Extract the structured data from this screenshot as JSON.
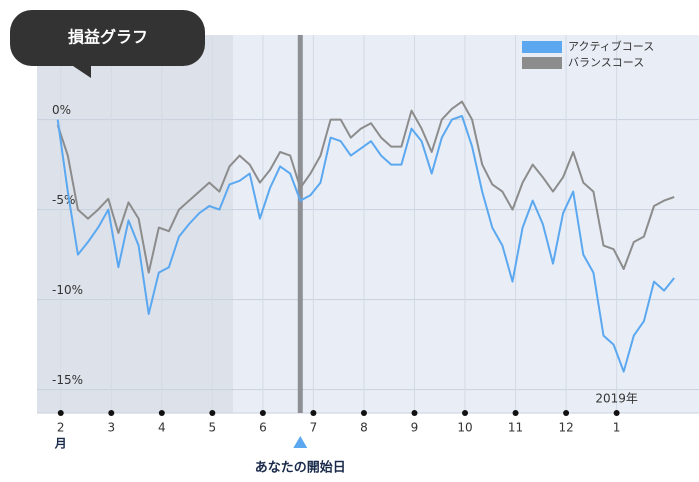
{
  "chart_data": {
    "type": "line",
    "title": "損益グラフ",
    "x_unit_label": "月",
    "year_label": "2019年",
    "start_marker": {
      "label": "あなたの開始日",
      "x": 4.74
    },
    "history_band": {
      "xlim": [
        -0.47,
        3.41
      ]
    },
    "xlim": [
      -0.47,
      12.63
    ],
    "ylim": [
      -16.3,
      4.7
    ],
    "xticks": [
      {
        "value": 0,
        "label": "2"
      },
      {
        "value": 1,
        "label": "3"
      },
      {
        "value": 2,
        "label": "4"
      },
      {
        "value": 3,
        "label": "5"
      },
      {
        "value": 4,
        "label": "6"
      },
      {
        "value": 5,
        "label": "7"
      },
      {
        "value": 6,
        "label": "8"
      },
      {
        "value": 7,
        "label": "9"
      },
      {
        "value": 8,
        "label": "10"
      },
      {
        "value": 9,
        "label": "11"
      },
      {
        "value": 10,
        "label": "12"
      },
      {
        "value": 11,
        "label": "1"
      }
    ],
    "yticks": [
      {
        "value": 0,
        "label": "0%"
      },
      {
        "value": -5,
        "label": "-5%"
      },
      {
        "value": -10,
        "label": "-10%"
      },
      {
        "value": -15,
        "label": "-15%"
      }
    ],
    "grid": true,
    "legend": "upper right",
    "x": [
      -0.06,
      0.14,
      0.34,
      0.54,
      0.74,
      0.94,
      1.14,
      1.34,
      1.54,
      1.74,
      1.94,
      2.14,
      2.34,
      2.54,
      2.74,
      2.94,
      3.14,
      3.34,
      3.54,
      3.74,
      3.94,
      4.14,
      4.34,
      4.54,
      4.74,
      4.94,
      5.14,
      5.34,
      5.54,
      5.74,
      5.94,
      6.14,
      6.34,
      6.54,
      6.74,
      6.94,
      7.14,
      7.34,
      7.54,
      7.74,
      7.94,
      8.14,
      8.34,
      8.54,
      8.74,
      8.94,
      9.14,
      9.34,
      9.54,
      9.74,
      9.94,
      10.14,
      10.34,
      10.54,
      10.74,
      10.94,
      11.14,
      11.34,
      11.54,
      11.74,
      11.94,
      12.14
    ],
    "series": [
      {
        "name": "アクティブコース",
        "color": "#5ba8f0",
        "values": [
          0,
          -4,
          -7.5,
          -6.8,
          -6,
          -5,
          -8.2,
          -5.6,
          -7,
          -10.8,
          -8.5,
          -8.2,
          -6.5,
          -5.8,
          -5.2,
          -4.8,
          -5,
          -3.6,
          -3.4,
          -3,
          -5.5,
          -3.8,
          -2.6,
          -3,
          -4.5,
          -4.2,
          -3.5,
          -1,
          -1.2,
          -2,
          -1.6,
          -1.2,
          -2,
          -2.5,
          -2.5,
          -0.5,
          -1.2,
          -3,
          -1,
          0,
          0.2,
          -1.5,
          -4,
          -6,
          -7,
          -9,
          -6,
          -4.5,
          -5.8,
          -8,
          -5.2,
          -4,
          -7.5,
          -8.5,
          -12,
          -12.5,
          -14,
          -12,
          -11.2,
          -9,
          -9.5,
          -8.8
        ]
      },
      {
        "name": "バランスコース",
        "color": "#8c8c8c",
        "values": [
          -0.3,
          -2,
          -5,
          -5.5,
          -5,
          -4.4,
          -6.3,
          -4.6,
          -5.5,
          -8.5,
          -6,
          -6.2,
          -5,
          -4.5,
          -4,
          -3.5,
          -4,
          -2.6,
          -2,
          -2.5,
          -3.5,
          -2.8,
          -1.8,
          -2,
          -3.8,
          -3,
          -2,
          0,
          0,
          -1,
          -0.5,
          -0.2,
          -1,
          -1.5,
          -1.5,
          0.5,
          -0.5,
          -1.8,
          0,
          0.6,
          1,
          0,
          -2.5,
          -3.6,
          -4,
          -5,
          -3.5,
          -2.5,
          -3.2,
          -4,
          -3.2,
          -1.8,
          -3.5,
          -4,
          -7,
          -7.2,
          -8.3,
          -6.8,
          -6.5,
          -4.8,
          -4.5,
          -4.3
        ]
      }
    ]
  }
}
